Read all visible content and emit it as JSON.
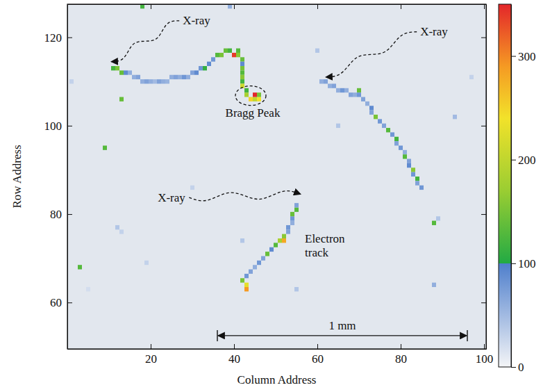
{
  "chart_data": {
    "type": "heatmap",
    "x_label": "Column Address",
    "y_label": "Row Address",
    "xlim": [
      0,
      100.5
    ],
    "ylim": [
      49.5,
      127.5
    ],
    "xticks": [
      20,
      40,
      60,
      80,
      100
    ],
    "yticks": [
      60,
      80,
      100,
      120
    ],
    "cells": [
      [
        11,
        113,
        120
      ],
      [
        12,
        113,
        150
      ],
      [
        13,
        112,
        140
      ],
      [
        14,
        112,
        90
      ],
      [
        15,
        112,
        60
      ],
      [
        16,
        111,
        60
      ],
      [
        17,
        111,
        70
      ],
      [
        18,
        110,
        60
      ],
      [
        19,
        110,
        70
      ],
      [
        20,
        110,
        60
      ],
      [
        21,
        110,
        50
      ],
      [
        22,
        110,
        70
      ],
      [
        23,
        110,
        60
      ],
      [
        24,
        110,
        55
      ],
      [
        25,
        111,
        60
      ],
      [
        26,
        111,
        70
      ],
      [
        27,
        111,
        60
      ],
      [
        28,
        111,
        80
      ],
      [
        29,
        111,
        60
      ],
      [
        30,
        112,
        70
      ],
      [
        31,
        112,
        90
      ],
      [
        32,
        113,
        80
      ],
      [
        33,
        113,
        110
      ],
      [
        34,
        114,
        90
      ],
      [
        35,
        115,
        80
      ],
      [
        36,
        116,
        130
      ],
      [
        37,
        116,
        150
      ],
      [
        38,
        117,
        140
      ],
      [
        39,
        117,
        120
      ],
      [
        40,
        116,
        340
      ],
      [
        41,
        117,
        130
      ],
      [
        41,
        116,
        160
      ],
      [
        42,
        115,
        140
      ],
      [
        42,
        114,
        90
      ],
      [
        42,
        113,
        150
      ],
      [
        42,
        112,
        130
      ],
      [
        42,
        111,
        160
      ],
      [
        42,
        110,
        120
      ],
      [
        42,
        109,
        210
      ],
      [
        43,
        108,
        120
      ],
      [
        43,
        107,
        180
      ],
      [
        44,
        106,
        250
      ],
      [
        45,
        106,
        200
      ],
      [
        45,
        107,
        350
      ],
      [
        46,
        106,
        240
      ],
      [
        46,
        107,
        150
      ],
      [
        61,
        110,
        60
      ],
      [
        62,
        110,
        70
      ],
      [
        63,
        109,
        60
      ],
      [
        64,
        109,
        70
      ],
      [
        65,
        108,
        60
      ],
      [
        66,
        108,
        80
      ],
      [
        67,
        108,
        60
      ],
      [
        68,
        107,
        70
      ],
      [
        69,
        107,
        60
      ],
      [
        70,
        108,
        140
      ],
      [
        70,
        107,
        80
      ],
      [
        71,
        106,
        70
      ],
      [
        72,
        105,
        60
      ],
      [
        73,
        104,
        90
      ],
      [
        73,
        103,
        70
      ],
      [
        74,
        102,
        150
      ],
      [
        75,
        101,
        80
      ],
      [
        76,
        100,
        70
      ],
      [
        77,
        99,
        130
      ],
      [
        78,
        98,
        80
      ],
      [
        79,
        97,
        120
      ],
      [
        79,
        96,
        70
      ],
      [
        80,
        95,
        80
      ],
      [
        81,
        94,
        60
      ],
      [
        81,
        93,
        130
      ],
      [
        82,
        92,
        70
      ],
      [
        82,
        91,
        90
      ],
      [
        83,
        90,
        160
      ],
      [
        83,
        89,
        80
      ],
      [
        84,
        88,
        120
      ],
      [
        84,
        87,
        70
      ],
      [
        85,
        86,
        80
      ],
      [
        43,
        63,
        290
      ],
      [
        43,
        64,
        230
      ],
      [
        42,
        65,
        150
      ],
      [
        43,
        66,
        80
      ],
      [
        44,
        67,
        70
      ],
      [
        45,
        68,
        60
      ],
      [
        46,
        69,
        80
      ],
      [
        47,
        70,
        70
      ],
      [
        48,
        71,
        140
      ],
      [
        49,
        72,
        90
      ],
      [
        50,
        73,
        130
      ],
      [
        51,
        74,
        180
      ],
      [
        52,
        74,
        280
      ],
      [
        52,
        75,
        160
      ],
      [
        53,
        76,
        70
      ],
      [
        53,
        77,
        80
      ],
      [
        54,
        78,
        60
      ],
      [
        54,
        79,
        80
      ],
      [
        54,
        80,
        140
      ],
      [
        55,
        81,
        130
      ],
      [
        55,
        82,
        70
      ],
      [
        18,
        127,
        120
      ],
      [
        13,
        106,
        140
      ],
      [
        9,
        95,
        130
      ],
      [
        3,
        68,
        130
      ],
      [
        39,
        127,
        60
      ],
      [
        60,
        117,
        40
      ],
      [
        97,
        111,
        30
      ],
      [
        93,
        102,
        50
      ],
      [
        65,
        100,
        40
      ],
      [
        12,
        77,
        40
      ],
      [
        13,
        76,
        30
      ],
      [
        19,
        69,
        30
      ],
      [
        42,
        74,
        40
      ],
      [
        55,
        63,
        40
      ],
      [
        88,
        64,
        60
      ],
      [
        88,
        78,
        130
      ],
      [
        89,
        79,
        40
      ],
      [
        1,
        110,
        30
      ],
      [
        30,
        86,
        30
      ],
      [
        5,
        63,
        20
      ]
    ],
    "colorbar": {
      "range": [
        0,
        350
      ],
      "ticks": [
        0,
        100,
        200,
        300
      ],
      "stops": [
        [
          0,
          "#f4f5f7"
        ],
        [
          100,
          "#4f7fcc"
        ],
        [
          100,
          "#22aa44"
        ],
        [
          170,
          "#9acd32"
        ],
        [
          240,
          "#f2e22a"
        ],
        [
          290,
          "#f59a23"
        ],
        [
          350,
          "#e3262a"
        ]
      ]
    },
    "annotations": [
      {
        "text": "X-ray",
        "x": 31,
        "y": 123.5,
        "target": [
          10.5,
          114.5
        ],
        "marker": "arrow"
      },
      {
        "text": "X-ray",
        "x": 88,
        "y": 121,
        "target": [
          62,
          111
        ],
        "marker": "arrow"
      },
      {
        "text": "X-ray",
        "x": 25,
        "y": 83.5,
        "target": [
          56,
          84.5
        ],
        "marker": "arrow"
      },
      {
        "text": "Bragg Peak",
        "x": 44.5,
        "y": 102.6,
        "target": [
          44,
          106.8
        ],
        "marker": "circle"
      },
      {
        "text": "Electron track",
        "x": 57,
        "y": 73
      }
    ],
    "scale_bar": {
      "text": "1 mm",
      "x": [
        36,
        96
      ],
      "y": 52.5
    }
  }
}
